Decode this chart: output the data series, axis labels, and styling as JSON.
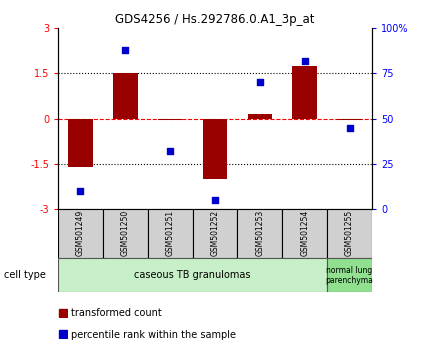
{
  "title": "GDS4256 / Hs.292786.0.A1_3p_at",
  "samples": [
    "GSM501249",
    "GSM501250",
    "GSM501251",
    "GSM501252",
    "GSM501253",
    "GSM501254",
    "GSM501255"
  ],
  "transformed_count": [
    -1.6,
    1.5,
    -0.05,
    -2.0,
    0.15,
    1.75,
    -0.05
  ],
  "percentile_rank": [
    10,
    88,
    32,
    5,
    70,
    82,
    45
  ],
  "bar_color": "#990000",
  "dot_color": "#0000cc",
  "ylim_left": [
    -3,
    3
  ],
  "ylim_right": [
    0,
    100
  ],
  "yticks_left": [
    -3,
    -1.5,
    0,
    1.5,
    3
  ],
  "yticks_right": [
    0,
    25,
    50,
    75,
    100
  ],
  "yticklabels_right": [
    "0",
    "25",
    "50",
    "75",
    "100%"
  ],
  "group1_n": 6,
  "group2_n": 1,
  "group1_label": "caseous TB granulomas",
  "group2_label": "normal lung\nparenchyma",
  "group1_color": "#c8f0c8",
  "group2_color": "#90e090",
  "cell_type_label": "cell type",
  "legend_bar_label": "transformed count",
  "legend_dot_label": "percentile rank within the sample",
  "background_color": "#ffffff",
  "tick_box_color": "#d0d0d0"
}
